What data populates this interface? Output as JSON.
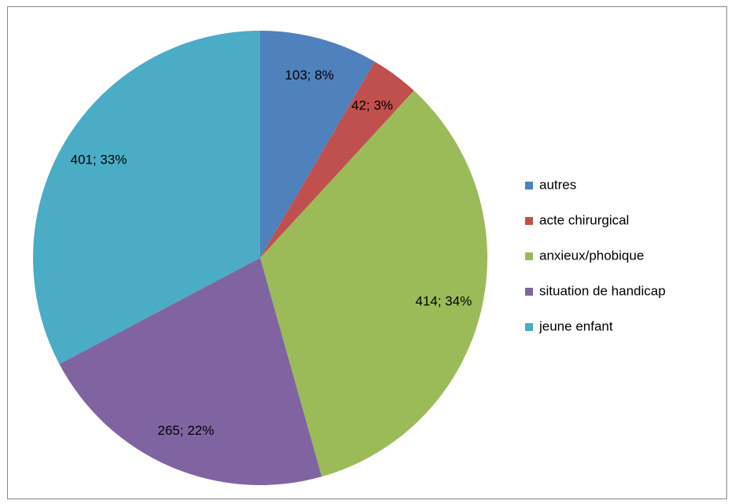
{
  "chart_data": {
    "type": "pie",
    "categories": [
      "autres",
      "acte chirurgical",
      "anxieux/phobique",
      "situation de handicap",
      "jeune enfant"
    ],
    "values": [
      103,
      42,
      414,
      265,
      401
    ],
    "value_labels": [
      "103; 8%",
      "42; 3%",
      "414; 34%",
      "265; 22%",
      "401; 33%"
    ],
    "colors": [
      "#4f81bd",
      "#c0504d",
      "#9bbb59",
      "#8064a2",
      "#4bacc6"
    ],
    "legend": "right"
  }
}
